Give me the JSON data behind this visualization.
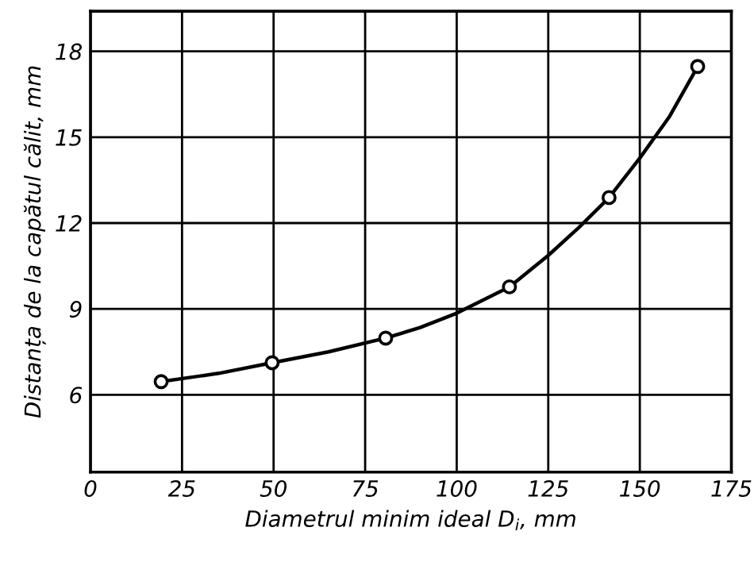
{
  "chart_data": {
    "type": "line",
    "xlabel": "Diametrul minim ideal D$_{i}$, mm",
    "ylabel": "Distanța de la capătul călit, mm",
    "x": [
      19.3,
      49.6,
      80.6,
      114.4,
      141.6,
      165.8
    ],
    "series": [
      {
        "color": "#000000",
        "marker": "none",
        "x": [
          19.3,
          35,
          49.6,
          65,
          80.6,
          90,
          100,
          114.4,
          125,
          133,
          141.6,
          150,
          158,
          165.8
        ],
        "values": [
          6.46,
          6.75,
          7.12,
          7.5,
          7.98,
          8.35,
          8.85,
          9.77,
          10.87,
          11.8,
          12.89,
          14.27,
          15.7,
          17.47
        ]
      },
      {
        "type": "scatter",
        "marker": "circle",
        "color": "#000000",
        "values": [
          6.46,
          7.12,
          7.98,
          9.77,
          12.89,
          17.47
        ]
      }
    ],
    "line_style": "solid",
    "grid": true,
    "xlim": [
      0,
      175
    ],
    "xticks": [
      0,
      25,
      50,
      75,
      100,
      125,
      150,
      175
    ],
    "ylim": [
      3.3,
      19.4
    ],
    "yticks": [
      6,
      9,
      12,
      15,
      18
    ]
  }
}
